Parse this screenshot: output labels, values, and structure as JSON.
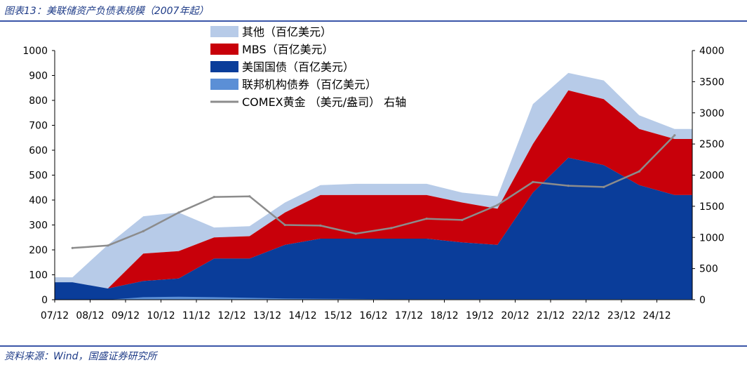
{
  "header": {
    "title": "图表13：美联储资产负债表规模（2007年起）"
  },
  "footer": {
    "source": "资料来源：Wind，国盛证券研究所"
  },
  "colors": {
    "other": "#b7cbe8",
    "mbs": "#c8000a",
    "treasury": "#0a3d9a",
    "agency": "#5b8fd6",
    "gold": "#8c8c8c"
  },
  "chart_data": {
    "type": "area",
    "x": [
      "07/12",
      "08/12",
      "09/12",
      "10/12",
      "11/12",
      "12/12",
      "13/12",
      "14/12",
      "15/12",
      "16/12",
      "17/12",
      "18/12",
      "19/12",
      "20/12",
      "21/12",
      "22/12",
      "23/12",
      "24/12"
    ],
    "xlabel": "",
    "ylabel": "",
    "ylim": [
      0,
      1000
    ],
    "y2lim": [
      0,
      4000
    ],
    "yticks": [
      "0",
      "100",
      "200",
      "300",
      "400",
      "500",
      "600",
      "700",
      "800",
      "900",
      "1000"
    ],
    "y2ticks": [
      "0",
      "500",
      "1000",
      "1500",
      "2000",
      "2500",
      "3000",
      "3500",
      "4000"
    ],
    "legend": "top-center",
    "series": [
      {
        "name": "其他（百亿美元）",
        "kind": "stacked-area",
        "values": [
          20,
          175,
          150,
          155,
          40,
          40,
          40,
          40,
          45,
          45,
          45,
          40,
          50,
          160,
          70,
          75,
          55,
          40
        ]
      },
      {
        "name": "MBS（百亿美元）",
        "kind": "stacked-area",
        "values": [
          0,
          0,
          110,
          110,
          85,
          90,
          130,
          175,
          175,
          175,
          175,
          160,
          145,
          195,
          270,
          265,
          225,
          225
        ]
      },
      {
        "name": "美国国债（百亿美元）",
        "kind": "stacked-area",
        "values": [
          70,
          45,
          75,
          85,
          165,
          165,
          220,
          245,
          245,
          245,
          245,
          230,
          220,
          430,
          570,
          540,
          460,
          420
        ]
      },
      {
        "name": "联邦机构债券（百亿美元）",
        "kind": "stacked-area",
        "values": [
          0,
          0,
          10,
          12,
          10,
          8,
          5,
          4,
          3,
          2,
          2,
          2,
          2,
          2,
          2,
          2,
          2,
          2
        ]
      },
      {
        "name": "COMEX黄金 （美元/盎司） 右轴",
        "kind": "line",
        "axis": "right",
        "values": [
          830,
          870,
          1100,
          1400,
          1650,
          1660,
          1200,
          1190,
          1060,
          1150,
          1300,
          1280,
          1520,
          1890,
          1830,
          1810,
          2060,
          2640
        ]
      }
    ]
  }
}
